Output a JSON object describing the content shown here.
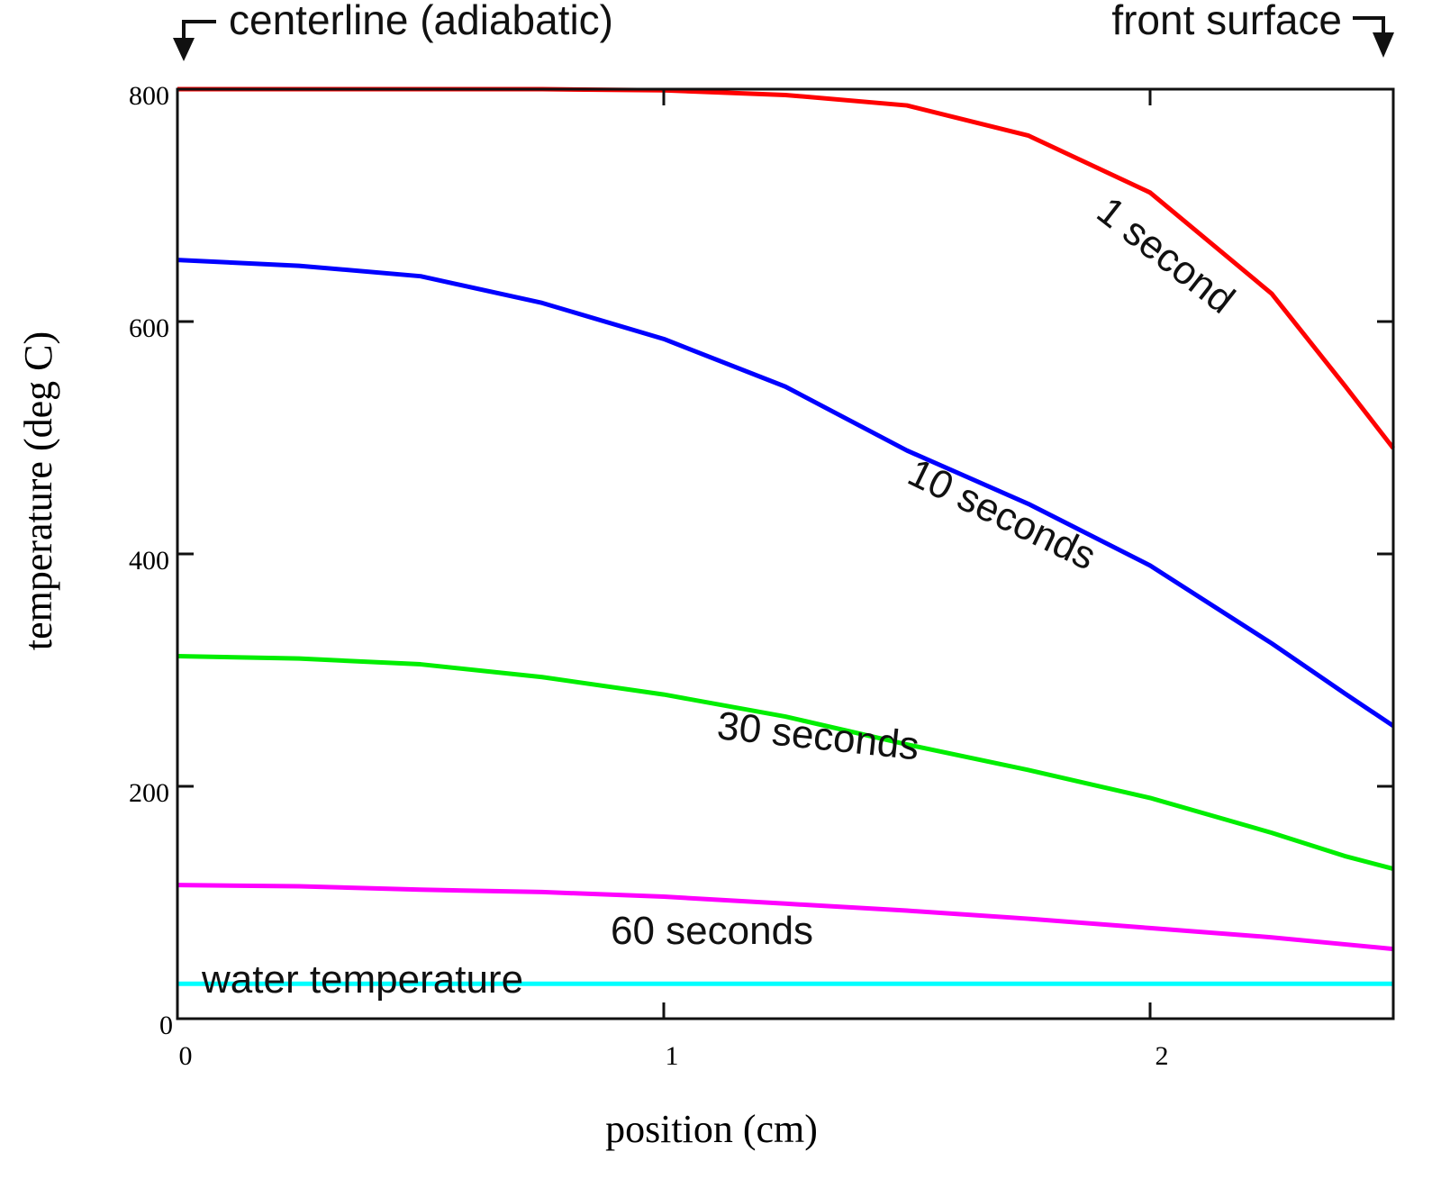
{
  "chart_data": {
    "type": "line",
    "xlabel": "position (cm)",
    "ylabel": "temperature (deg C)",
    "xlim": [
      0,
      2.5
    ],
    "ylim": [
      0,
      800
    ],
    "xticks": [
      "0",
      "1",
      "2"
    ],
    "yticks": [
      "0",
      "200",
      "400",
      "600",
      "800"
    ],
    "grid": false,
    "annotations": {
      "left": "centerline (adiabatic)",
      "right": "front surface"
    },
    "x": [
      0,
      0.25,
      0.5,
      0.75,
      1.0,
      1.25,
      1.5,
      1.75,
      2.0,
      2.25,
      2.4,
      2.5
    ],
    "series": [
      {
        "name": "1 second",
        "color": "#ff0000",
        "values": [
          800,
          800,
          800,
          800,
          799,
          795,
          786,
          760,
          711,
          624,
          545,
          491
        ]
      },
      {
        "name": "10 seconds",
        "color": "#0000ff",
        "values": [
          653,
          648,
          639,
          616,
          585,
          544,
          489,
          443,
          390,
          323,
          280,
          252
        ]
      },
      {
        "name": "30 seconds",
        "color": "#00ee00",
        "values": [
          312,
          310,
          305,
          294,
          279,
          260,
          236,
          214,
          190,
          160,
          140,
          129
        ]
      },
      {
        "name": "60 seconds",
        "color": "#ff00ff",
        "values": [
          115,
          114,
          111,
          109,
          105,
          99,
          93,
          86,
          78,
          70,
          64,
          60
        ]
      },
      {
        "name": "water temperature",
        "color": "#00ffff",
        "values": [
          30,
          30,
          30,
          30,
          30,
          30,
          30,
          30,
          30,
          30,
          30,
          30
        ]
      }
    ]
  }
}
